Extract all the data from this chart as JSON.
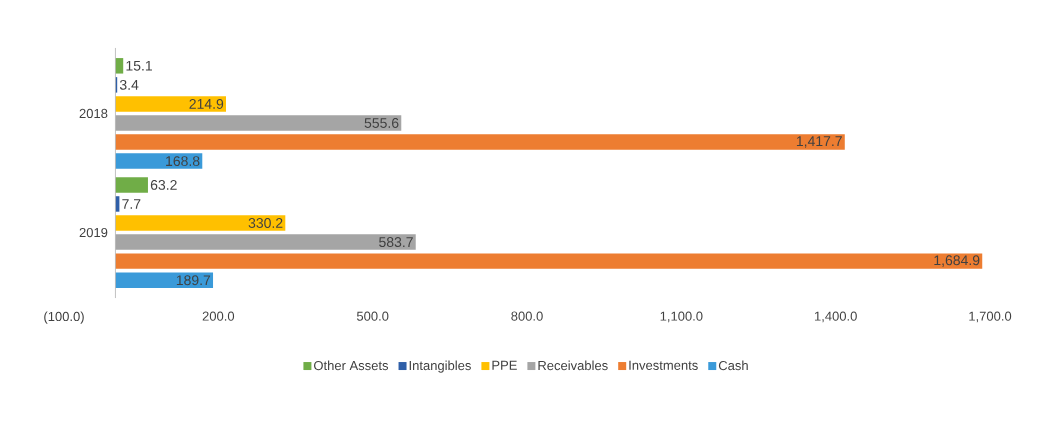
{
  "chart_data": {
    "type": "bar",
    "orientation": "horizontal",
    "categories": [
      "2018",
      "2019"
    ],
    "series": [
      {
        "name": "Other Assets",
        "color": "#70ad47",
        "values": [
          15.1,
          63.2
        ],
        "value_labels": [
          "15.1",
          "63.2"
        ]
      },
      {
        "name": "Intangibles",
        "color": "#2f5fa8",
        "values": [
          3.4,
          7.7
        ],
        "value_labels": [
          "3.4",
          "7.7"
        ]
      },
      {
        "name": "PPE",
        "color": "#ffc000",
        "values": [
          214.9,
          330.2
        ],
        "value_labels": [
          "214.9",
          "330.2"
        ]
      },
      {
        "name": "Receivables",
        "color": "#a5a5a5",
        "values": [
          555.6,
          583.7
        ],
        "value_labels": [
          "555.6",
          "583.7"
        ]
      },
      {
        "name": "Investments",
        "color": "#ed7d31",
        "values": [
          1417.7,
          1684.9
        ],
        "value_labels": [
          "1,417.7",
          "1,684.9"
        ]
      },
      {
        "name": "Cash",
        "color": "#3a9ad9",
        "values": [
          168.8,
          189.7
        ],
        "value_labels": [
          "168.8",
          "189.7"
        ]
      }
    ],
    "xlim": [
      -100,
      1700
    ],
    "xticks": [
      {
        "value": -100,
        "label": "(100.0)"
      },
      {
        "value": 200,
        "label": "200.0"
      },
      {
        "value": 500,
        "label": "500.0"
      },
      {
        "value": 800,
        "label": "800.0"
      },
      {
        "value": 1100,
        "label": "1,100.0"
      },
      {
        "value": 1400,
        "label": "1,400.0"
      },
      {
        "value": 1700,
        "label": "1,700.0"
      }
    ],
    "grid": false,
    "legend": "bottom"
  }
}
